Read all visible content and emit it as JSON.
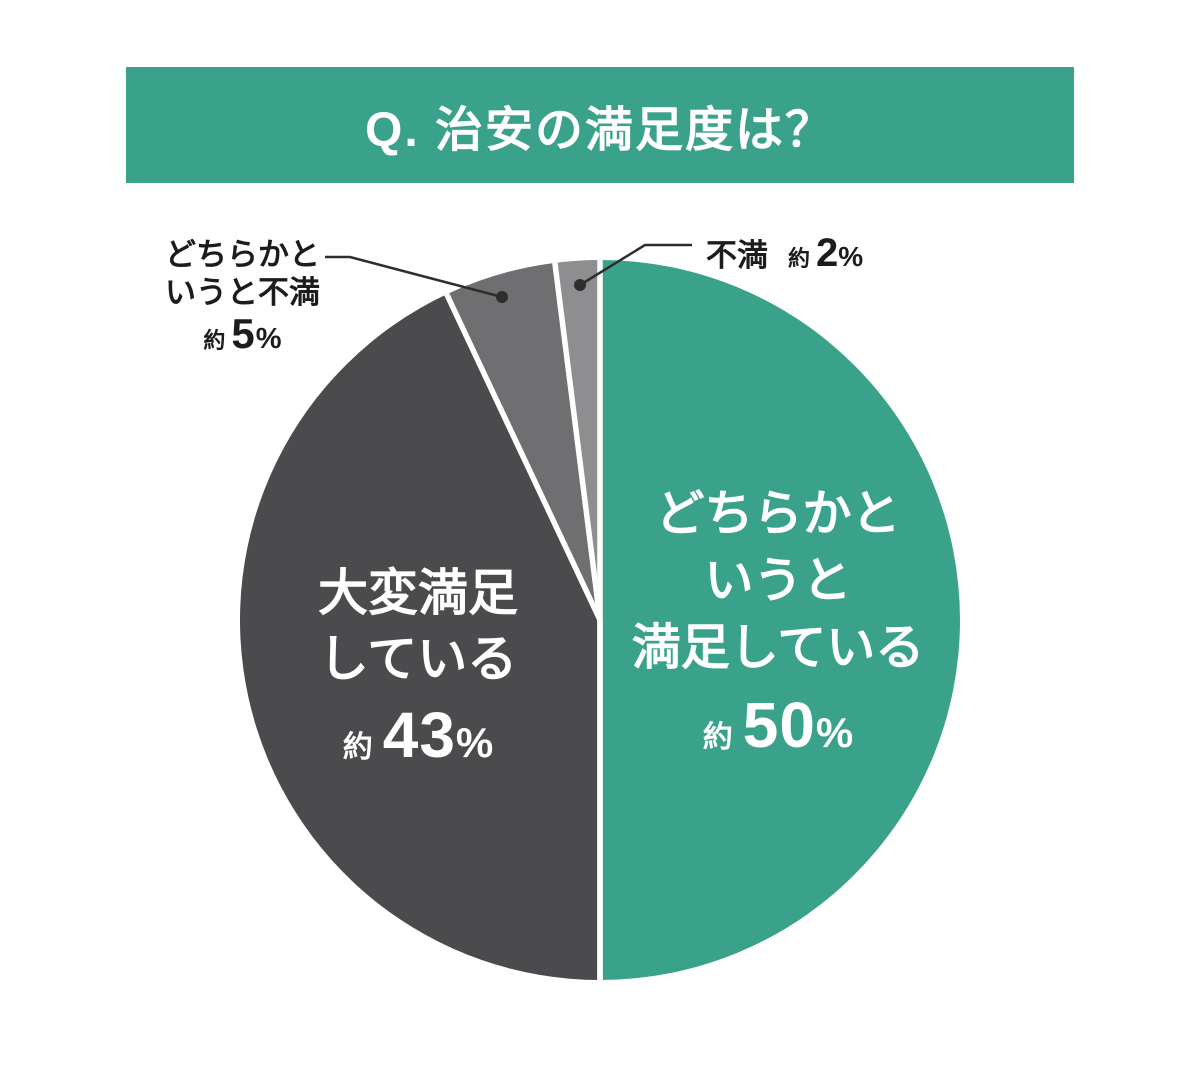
{
  "banner": {
    "title": "Q. 治安の満足度は？",
    "bg_color": "#3AA28A",
    "text_color": "#FFFFFF"
  },
  "symbols": {
    "percent": "%"
  },
  "chart_data": {
    "type": "pie",
    "title": "Q. 治安の満足度は？",
    "direction": "clockwise",
    "start_angle_deg": 0,
    "total": 100,
    "background": "#FFFFFF",
    "separator_color": "#FFFFFF",
    "leader_line_color": "#2E2E2E",
    "legend": "none",
    "slices": [
      {
        "name": "somewhat-satisfied",
        "label": "どちらかと いうと 満足している",
        "label_lines": [
          "どちらかと",
          "いうと",
          "満足している"
        ],
        "approx_prefix": "約",
        "value": 50,
        "display": "約50%",
        "color": "#3AA28A",
        "label_placement": "inside"
      },
      {
        "name": "very-satisfied",
        "label": "大変満足している",
        "label_lines": [
          "大変満足",
          "している"
        ],
        "approx_prefix": "約",
        "value": 43,
        "display": "約43%",
        "color": "#4B4B4D",
        "label_placement": "inside"
      },
      {
        "name": "somewhat-dissatisfied",
        "label": "どちらかと いうと不満",
        "label_lines": [
          "どちらかと",
          "いうと不満"
        ],
        "approx_prefix": "約",
        "value": 5,
        "display": "約5%",
        "color": "#6F6F71",
        "label_placement": "outside"
      },
      {
        "name": "dissatisfied",
        "label": "不満",
        "label_lines": [
          "不満"
        ],
        "approx_prefix": "約",
        "value": 2,
        "display": "約2%",
        "color": "#8E8E90",
        "label_placement": "outside"
      }
    ]
  }
}
